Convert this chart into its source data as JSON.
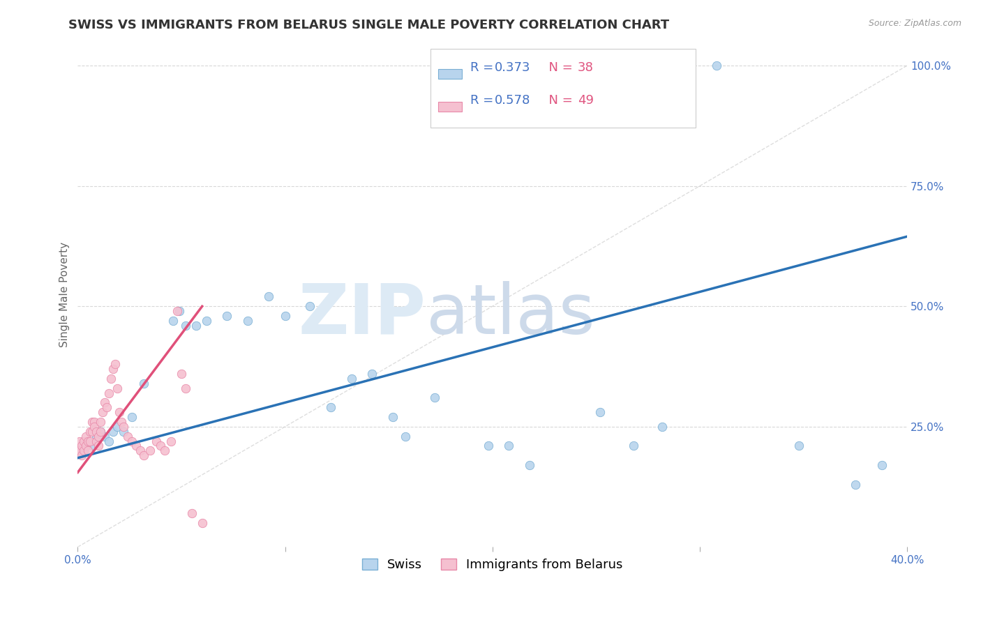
{
  "title": "SWISS VS IMMIGRANTS FROM BELARUS SINGLE MALE POVERTY CORRELATION CHART",
  "source": "Source: ZipAtlas.com",
  "ylabel": "Single Male Poverty",
  "xlim": [
    0.0,
    0.4
  ],
  "ylim": [
    0.0,
    1.05
  ],
  "ytick_vals": [
    0.25,
    0.5,
    0.75,
    1.0
  ],
  "ytick_labels": [
    "25.0%",
    "50.0%",
    "75.0%",
    "100.0%"
  ],
  "xtick_vals": [
    0.0,
    0.1,
    0.2,
    0.3,
    0.4
  ],
  "xtick_labels": [
    "0.0%",
    "",
    "",
    "",
    "40.0%"
  ],
  "background_color": "#ffffff",
  "swiss_color": "#b8d4ed",
  "swiss_edge_color": "#7aafd4",
  "belarus_color": "#f5c0d0",
  "belarus_edge_color": "#e888a8",
  "swiss_R": "0.373",
  "swiss_N": "38",
  "belarus_R": "0.578",
  "belarus_N": "49",
  "legend_swiss_label": "Swiss",
  "legend_belarus_label": "Immigrants from Belarus",
  "swiss_line_color": "#2a72b5",
  "belarus_line_color": "#e0507a",
  "diagonal_color": "#d0d0d0",
  "swiss_scatter_x": [
    0.003,
    0.005,
    0.007,
    0.009,
    0.011,
    0.013,
    0.015,
    0.017,
    0.019,
    0.022,
    0.026,
    0.032,
    0.046,
    0.049,
    0.052,
    0.057,
    0.062,
    0.072,
    0.082,
    0.092,
    0.1,
    0.112,
    0.122,
    0.132,
    0.142,
    0.152,
    0.158,
    0.172,
    0.198,
    0.208,
    0.218,
    0.252,
    0.268,
    0.282,
    0.308,
    0.348,
    0.375,
    0.388
  ],
  "swiss_scatter_y": [
    0.2,
    0.22,
    0.21,
    0.23,
    0.24,
    0.23,
    0.22,
    0.24,
    0.25,
    0.24,
    0.27,
    0.34,
    0.47,
    0.49,
    0.46,
    0.46,
    0.47,
    0.48,
    0.47,
    0.52,
    0.48,
    0.5,
    0.29,
    0.35,
    0.36,
    0.27,
    0.23,
    0.31,
    0.21,
    0.21,
    0.17,
    0.28,
    0.21,
    0.25,
    1.0,
    0.21,
    0.13,
    0.17
  ],
  "belarus_scatter_x": [
    0.0,
    0.001,
    0.001,
    0.002,
    0.002,
    0.003,
    0.003,
    0.004,
    0.004,
    0.005,
    0.005,
    0.006,
    0.006,
    0.007,
    0.007,
    0.008,
    0.008,
    0.009,
    0.009,
    0.01,
    0.01,
    0.011,
    0.011,
    0.012,
    0.013,
    0.014,
    0.015,
    0.016,
    0.017,
    0.018,
    0.019,
    0.02,
    0.021,
    0.022,
    0.024,
    0.026,
    0.028,
    0.03,
    0.032,
    0.035,
    0.038,
    0.04,
    0.042,
    0.045,
    0.048,
    0.05,
    0.052,
    0.055,
    0.06
  ],
  "belarus_scatter_y": [
    0.2,
    0.22,
    0.2,
    0.21,
    0.19,
    0.2,
    0.22,
    0.21,
    0.23,
    0.2,
    0.22,
    0.24,
    0.22,
    0.24,
    0.26,
    0.26,
    0.25,
    0.22,
    0.24,
    0.21,
    0.23,
    0.24,
    0.26,
    0.28,
    0.3,
    0.29,
    0.32,
    0.35,
    0.37,
    0.38,
    0.33,
    0.28,
    0.26,
    0.25,
    0.23,
    0.22,
    0.21,
    0.2,
    0.19,
    0.2,
    0.22,
    0.21,
    0.2,
    0.22,
    0.49,
    0.36,
    0.33,
    0.07,
    0.05
  ],
  "swiss_line_x": [
    0.0,
    0.4
  ],
  "swiss_line_y": [
    0.185,
    0.645
  ],
  "belarus_line_x": [
    0.0,
    0.06
  ],
  "belarus_line_y": [
    0.155,
    0.5
  ],
  "marker_size": 80,
  "title_fontsize": 13,
  "label_fontsize": 11,
  "tick_fontsize": 11,
  "legend_fontsize": 13,
  "rn_fontsize": 13
}
